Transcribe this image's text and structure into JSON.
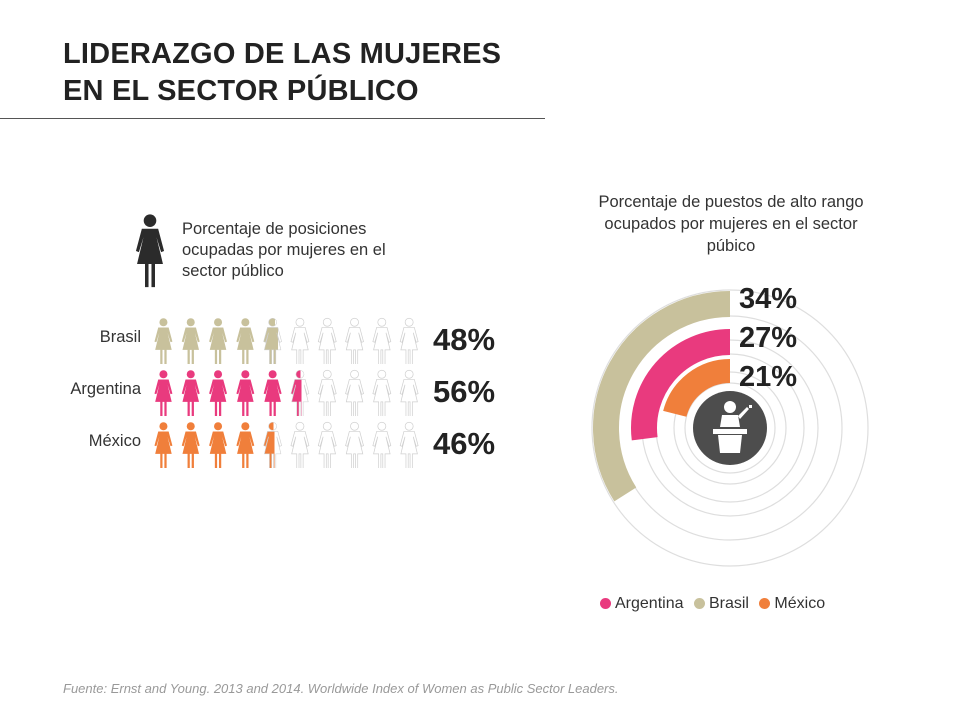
{
  "title_line1": "LIDERAZGO DE LAS MUJERES",
  "title_line2": "EN EL SECTOR PÚBLICO",
  "left_description": "Porcentaje de posiciones ocupadas por mujeres en el sector público",
  "right_description": "Porcentaje de puestos de alto rango ocupados por mujeres en el sector púbico",
  "source": "Fuente: Ernst and Young. 2013 and 2014. Worldwide Index of Women as Public Sector Leaders.",
  "colors": {
    "Brasil": "#c8c19c",
    "Argentina": "#e93a7e",
    "México": "#f07f3b",
    "track": "#dedede",
    "center": "#4d4d4d"
  },
  "icons": {
    "header": "woman-icon",
    "center": "speaker-at-podium-icon"
  },
  "chart_data": [
    {
      "type": "pictogram",
      "categories": [
        "Brasil",
        "Argentina",
        "México"
      ],
      "values": [
        48,
        56,
        46
      ],
      "value_labels": [
        "48%",
        "56%",
        "46%"
      ],
      "unit": "%",
      "icons_per_row": 10
    },
    {
      "type": "radial-bar",
      "series": [
        {
          "name": "Brasil",
          "value": 34,
          "label": "34%"
        },
        {
          "name": "Argentina",
          "value": 27,
          "label": "27%"
        },
        {
          "name": "México",
          "value": 21,
          "label": "21%"
        }
      ],
      "unit": "%",
      "legend": {
        "position": "bottom",
        "items": [
          "Argentina",
          "Brasil",
          "México"
        ]
      }
    }
  ]
}
